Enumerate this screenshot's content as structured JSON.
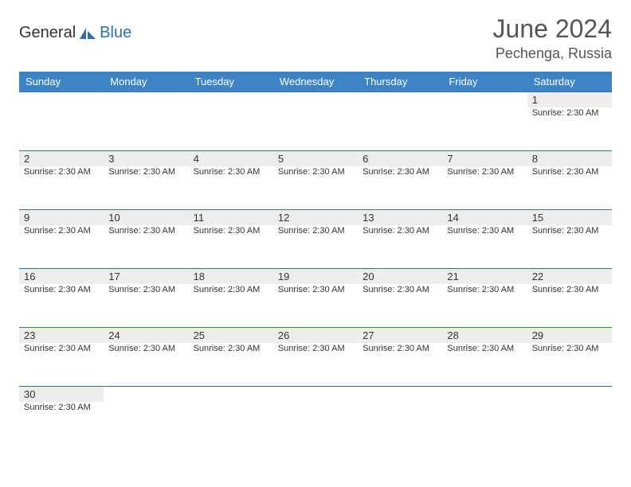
{
  "logo": {
    "general": "General",
    "blue": "Blue"
  },
  "title": "June 2024",
  "location": "Pechenga, Russia",
  "colors": {
    "header_bg": "#3c84c6",
    "header_text": "#ffffff",
    "stripe_bg": "#ededed",
    "border": "#2d6fb3",
    "text": "#333333",
    "background": "#ffffff"
  },
  "day_names": [
    "Sunday",
    "Monday",
    "Tuesday",
    "Wednesday",
    "Thursday",
    "Friday",
    "Saturday"
  ],
  "event_text": "Sunrise: 2:30 AM",
  "weeks": [
    [
      null,
      null,
      null,
      null,
      null,
      null,
      1
    ],
    [
      2,
      3,
      4,
      5,
      6,
      7,
      8
    ],
    [
      9,
      10,
      11,
      12,
      13,
      14,
      15
    ],
    [
      16,
      17,
      18,
      19,
      20,
      21,
      22
    ],
    [
      23,
      24,
      25,
      26,
      27,
      28,
      29
    ],
    [
      30,
      null,
      null,
      null,
      null,
      null,
      null
    ]
  ]
}
